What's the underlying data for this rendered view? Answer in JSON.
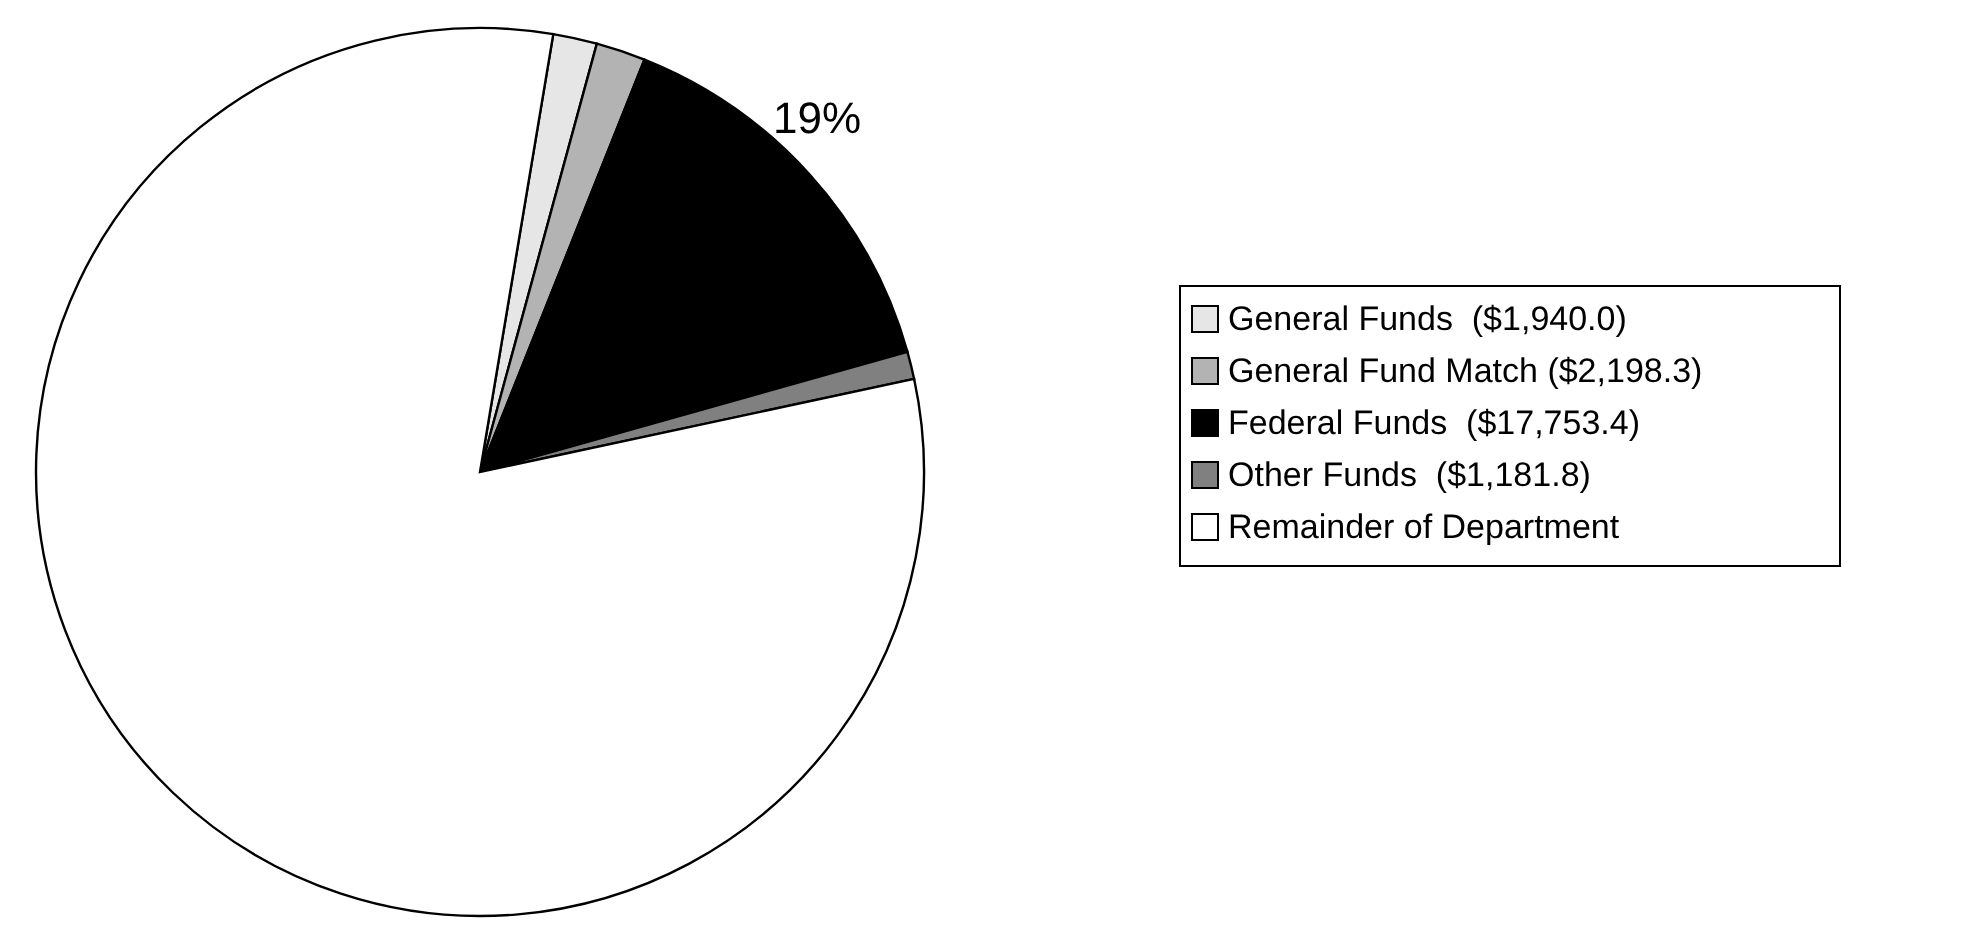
{
  "chart_data": {
    "type": "pie",
    "categories": [
      "General Funds  ($1,940.0)",
      "General Fund Match ($2,198.3)",
      "Federal Funds  ($17,753.4)",
      "Other Funds  ($1,181.8)",
      "Remainder of Department"
    ],
    "values": [
      1.6,
      1.8,
      14.6,
      1.0,
      81.0
    ],
    "colors": [
      "#e6e6e6",
      "#b3b3b3",
      "#000000",
      "#808080",
      "#ffffff"
    ],
    "annotations": [
      "19%"
    ],
    "legend": "right"
  }
}
